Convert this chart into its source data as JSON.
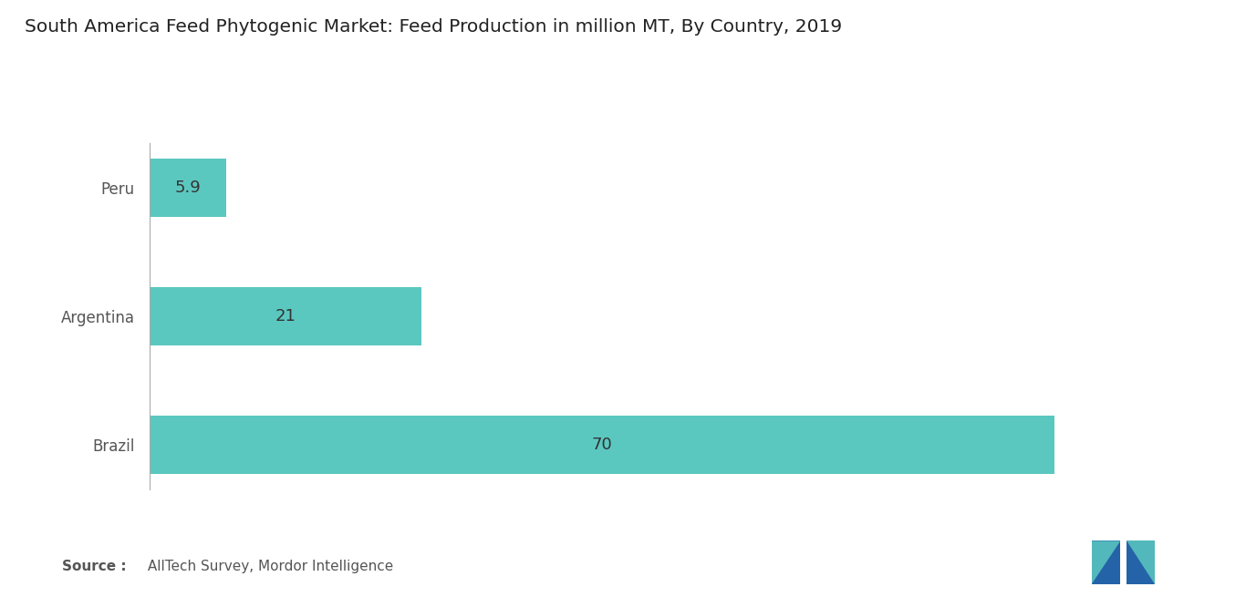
{
  "title": "South America Feed Phytogenic Market: Feed Production in million MT, By Country, 2019",
  "categories": [
    "Brazil",
    "Argentina",
    "Peru"
  ],
  "values": [
    70,
    21,
    5.9
  ],
  "bar_color": "#5BC8C0",
  "label_color": "#555555",
  "background_color": "#ffffff",
  "title_fontsize": 14.5,
  "label_fontsize": 13,
  "tick_fontsize": 12,
  "source_bold": "Source :",
  "source_regular": " AllTech Survey, Mordor Intelligence",
  "xlim": [
    0,
    80
  ],
  "bar_height": 0.45,
  "logo_blue": "#2563a8",
  "logo_teal": "#5BC8C0"
}
